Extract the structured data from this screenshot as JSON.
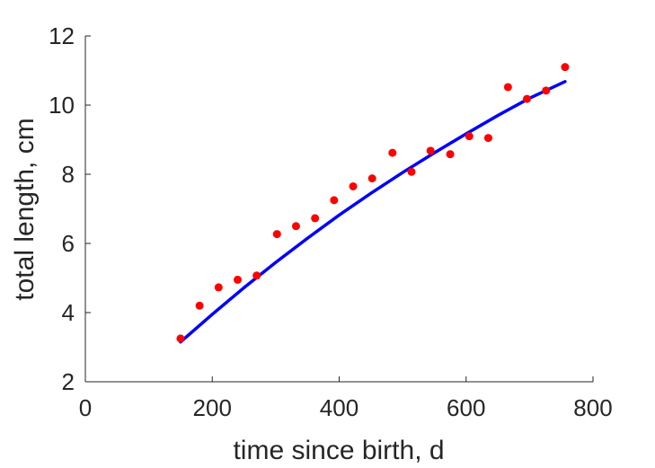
{
  "chart_data": {
    "type": "scatter",
    "title": "",
    "xlabel": "time since birth, d",
    "ylabel": "total length, cm",
    "xlim": [
      0,
      800
    ],
    "ylim": [
      2,
      12
    ],
    "xticks": [
      0,
      200,
      400,
      800
    ],
    "xtick_labels": [
      "0",
      "200",
      "400",
      "800"
    ],
    "xticks_all": [
      0,
      200,
      400,
      600,
      800
    ],
    "xtick_labels_all": [
      "0",
      "200",
      "400",
      "600",
      "800"
    ],
    "yticks": [
      2,
      4,
      6,
      8,
      10,
      12
    ],
    "ytick_labels": [
      "2",
      "4",
      "6",
      "8",
      "10",
      "12"
    ],
    "grid": false,
    "series": [
      {
        "kind": "scatter",
        "color": "#ff0000",
        "x": [
          150,
          180,
          210,
          240,
          270,
          302,
          332,
          362,
          392,
          422,
          452,
          484,
          514,
          544,
          575,
          605,
          635,
          666,
          696,
          726,
          756
        ],
        "y": [
          3.25,
          4.2,
          4.73,
          4.95,
          5.07,
          6.27,
          6.5,
          6.73,
          7.25,
          7.65,
          7.88,
          8.62,
          8.07,
          8.68,
          8.58,
          9.1,
          9.05,
          10.52,
          10.18,
          10.42,
          11.1
        ]
      },
      {
        "kind": "line",
        "color": "#0000ff",
        "x": [
          150,
          200,
          250,
          300,
          350,
          400,
          450,
          500,
          550,
          600,
          650,
          700,
          756
        ],
        "y": [
          3.15,
          3.95,
          4.72,
          5.45,
          6.15,
          6.82,
          7.45,
          8.05,
          8.62,
          9.17,
          9.7,
          10.2,
          10.68
        ]
      }
    ]
  }
}
